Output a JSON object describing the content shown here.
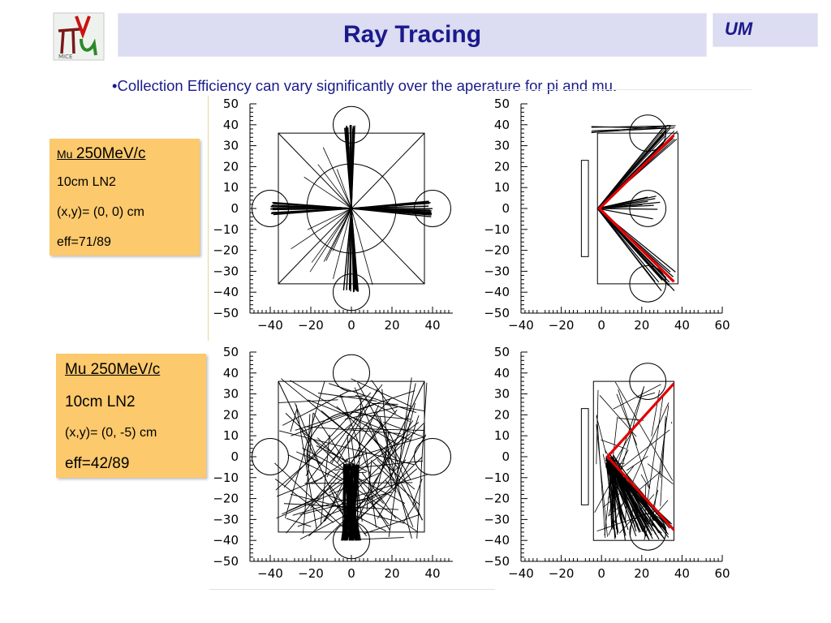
{
  "title": "Ray Tracing",
  "badge": "UM",
  "bullet": {
    "marker": "•",
    "text": "Collection Efficiency can vary significantly over the aperature for pi and mu",
    "end": "."
  },
  "logo": {
    "description_icon": "pi-nu-mu-logo-icon",
    "sub_text": "MICE"
  },
  "note_top": {
    "line1_small": "Mu",
    "line1_big": "250MeV/c",
    "line2": "10cm LN2",
    "line3": "(x,y)= (0, 0) cm",
    "line4": "eff=71/89"
  },
  "note_bottom": {
    "line1": "Mu 250MeV/c",
    "line2": "10cm LN2",
    "line3": "(x,y)= (0, -5) cm",
    "line4": "eff=42/89"
  },
  "colors": {
    "title": "#1a1a8c",
    "bar": "#dcdcf2",
    "note": "#fcc96c",
    "mirror": "#e00000"
  },
  "chart_data": [
    {
      "type": "scatter",
      "name_hint": "front view top",
      "xticks": [
        -40,
        -20,
        0,
        20,
        40
      ],
      "yticks": [
        50,
        40,
        30,
        20,
        10,
        0,
        -10,
        -20,
        -30,
        -40,
        -50
      ],
      "xlim": [
        -50,
        50
      ],
      "ylim": [
        -50,
        50
      ]
    },
    {
      "type": "scatter",
      "name_hint": "side view top",
      "xticks": [
        -40,
        -20,
        0,
        20,
        40,
        60
      ],
      "yticks": [
        50,
        40,
        30,
        20,
        10,
        0,
        -10,
        -20,
        -30,
        -40,
        -50
      ],
      "xlim": [
        -40,
        60
      ],
      "ylim": [
        -50,
        50
      ]
    },
    {
      "type": "scatter",
      "name_hint": "front view bottom",
      "xticks": [
        -40,
        -20,
        0,
        20,
        40
      ],
      "yticks": [
        50,
        40,
        30,
        20,
        10,
        0,
        -10,
        -20,
        -30,
        -40,
        -50
      ],
      "xlim": [
        -50,
        50
      ],
      "ylim": [
        -50,
        50
      ]
    },
    {
      "type": "scatter",
      "name_hint": "side view bottom",
      "xticks": [
        -40,
        -20,
        0,
        20,
        40,
        60
      ],
      "yticks": [
        50,
        40,
        30,
        20,
        10,
        0,
        -10,
        -20,
        -30,
        -40,
        -50
      ],
      "xlim": [
        -40,
        60
      ],
      "ylim": [
        -50,
        50
      ]
    }
  ]
}
